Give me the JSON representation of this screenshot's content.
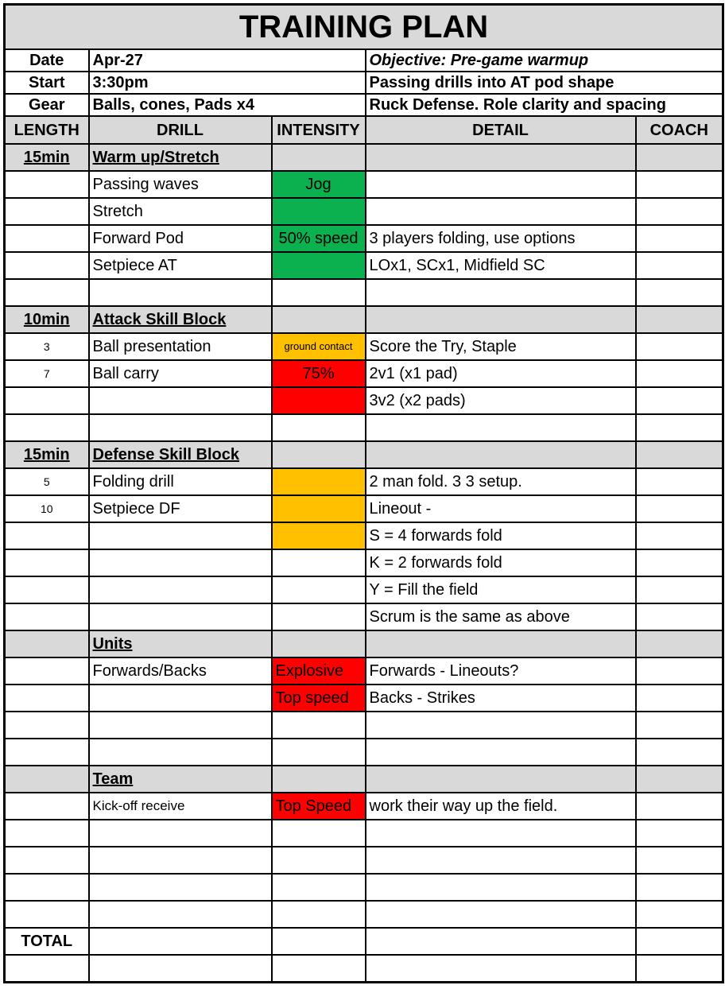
{
  "title": "TRAINING PLAN",
  "info": [
    {
      "label": "Date",
      "value": "Apr-27",
      "note": "Objective: Pre-game warmup",
      "note_italic": true
    },
    {
      "label": "Start",
      "value": "3:30pm",
      "note": "Passing drills into AT pod shape",
      "note_italic": false
    },
    {
      "label": "Gear",
      "value": "Balls, cones, Pads x4",
      "note": "Ruck Defense. Role clarity and spacing",
      "note_italic": false
    }
  ],
  "columns": [
    "LENGTH",
    "DRILL",
    "INTENSITY",
    "DETAIL",
    "COACH"
  ],
  "colors": {
    "header_gray": "#d9d9d9",
    "green": "#0bb04f",
    "orange": "#ffc000",
    "red": "#ff0000"
  },
  "rows": [
    {
      "type": "section",
      "length": "15min",
      "drill": "Warm up/Stretch"
    },
    {
      "drill": "Passing waves",
      "intensity": "Jog",
      "color": "#0bb04f"
    },
    {
      "drill": "Stretch",
      "color": "#0bb04f"
    },
    {
      "drill": "Forward Pod",
      "intensity": "50% speed",
      "color": "#0bb04f",
      "detail": "3 players folding, use options"
    },
    {
      "drill": "Setpiece AT",
      "color": "#0bb04f",
      "detail": "LOx1, SCx1, Midfield SC"
    },
    {},
    {
      "type": "section",
      "length": "10min",
      "drill": "Attack Skill Block"
    },
    {
      "tall": true,
      "length": "3",
      "drill": "Ball presentation",
      "intensity": "ground contact",
      "color": "#ffc000",
      "detail": "Score the Try, Staple",
      "tiny": true
    },
    {
      "length": "7",
      "drill": "Ball carry",
      "intensity": "75%",
      "color": "#ff0000",
      "detail": "2v1  (x1 pad)"
    },
    {
      "color": "#ff0000",
      "detail": "3v2 (x2 pads)"
    },
    {},
    {
      "type": "section",
      "length": "15min",
      "drill": "Defense Skill Block"
    },
    {
      "length": "5",
      "drill": "Folding drill",
      "color": "#ffc000",
      "detail": "2 man fold. 3 3 setup."
    },
    {
      "length": "10",
      "drill": "Setpiece DF",
      "color": "#ffc000",
      "detail": "Lineout -"
    },
    {
      "color": "#ffc000",
      "detail": "S = 4 forwards fold"
    },
    {
      "detail": "K = 2 forwards fold"
    },
    {
      "detail": "Y = Fill the field"
    },
    {
      "detail": "Scrum is the same as above"
    },
    {
      "type": "section",
      "drill": "Units"
    },
    {
      "drill": "Forwards/Backs",
      "intensity": "Explosive",
      "color": "#ff0000",
      "detail": "Forwards - Lineouts?",
      "left": true
    },
    {
      "intensity": "Top speed",
      "color": "#ff0000",
      "detail": "Backs - Strikes",
      "left": true
    },
    {},
    {},
    {
      "type": "section",
      "drill": "Team"
    },
    {
      "drill": "Kick-off receive",
      "intensity": "Top Speed",
      "color": "#ff0000",
      "detail": "work their way up the field.",
      "left": true,
      "small_drill": true
    },
    {},
    {},
    {},
    {},
    {
      "type": "total",
      "length": "TOTAL"
    },
    {}
  ]
}
